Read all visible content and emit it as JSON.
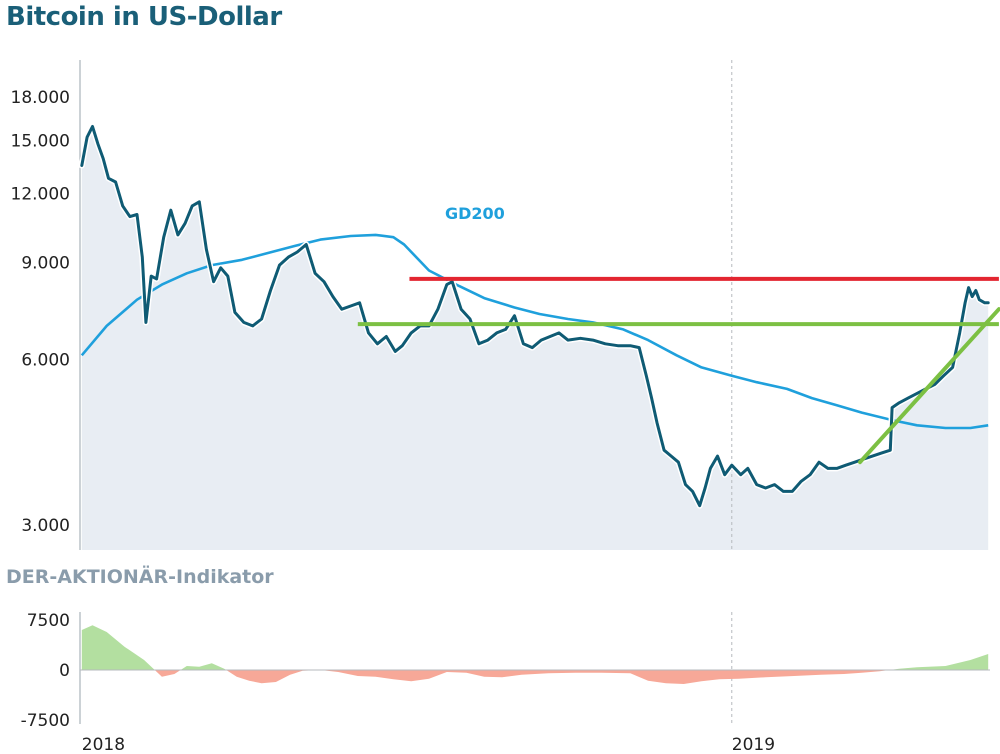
{
  "title": "Bitcoin in US-Dollar",
  "indicator_title": "DER-AKTIONÄR-Indikator",
  "gd_label": "GD200",
  "chart_data": [
    {
      "type": "line",
      "title": "Bitcoin in US-Dollar",
      "yscale": "log",
      "ylim": [
        2700,
        21000
      ],
      "xlim": [
        "2017-12-31",
        "2019-05-26"
      ],
      "yticks": [
        3000,
        6000,
        9000,
        12000,
        15000,
        18000
      ],
      "ytick_labels": [
        "3.000",
        "6.000",
        "9.000",
        "12.000",
        "15.000",
        "18.000"
      ],
      "xtick_labels": [
        "2018",
        "2019"
      ],
      "xtick_dates": [
        "2018-01-01",
        "2019-01-01"
      ],
      "grid": "vertical dashed at year start",
      "colors": {
        "price": "#0f5b74",
        "gd200": "#1fa0dc",
        "fill": "#e8edf3",
        "resistance": "#e32530",
        "support": "#7cc043"
      },
      "series": [
        {
          "name": "",
          "x": [
            "2018-01-01",
            "2018-01-04",
            "2018-01-07",
            "2018-01-10",
            "2018-01-13",
            "2018-01-16",
            "2018-01-20",
            "2018-01-24",
            "2018-01-28",
            "2018-02-01",
            "2018-02-04",
            "2018-02-06",
            "2018-02-09",
            "2018-02-12",
            "2018-02-16",
            "2018-02-20",
            "2018-02-24",
            "2018-02-28",
            "2018-03-04",
            "2018-03-08",
            "2018-03-12",
            "2018-03-16",
            "2018-03-20",
            "2018-03-24",
            "2018-03-28",
            "2018-04-02",
            "2018-04-07",
            "2018-04-12",
            "2018-04-17",
            "2018-04-22",
            "2018-04-27",
            "2018-05-02",
            "2018-05-07",
            "2018-05-12",
            "2018-05-17",
            "2018-05-22",
            "2018-05-27",
            "2018-06-01",
            "2018-06-06",
            "2018-06-11",
            "2018-06-16",
            "2018-06-21",
            "2018-06-26",
            "2018-06-30",
            "2018-07-05",
            "2018-07-10",
            "2018-07-15",
            "2018-07-20",
            "2018-07-25",
            "2018-07-28",
            "2018-08-02",
            "2018-08-07",
            "2018-08-12",
            "2018-08-17",
            "2018-08-22",
            "2018-08-27",
            "2018-09-01",
            "2018-09-06",
            "2018-09-11",
            "2018-09-16",
            "2018-09-21",
            "2018-09-26",
            "2018-10-01",
            "2018-10-08",
            "2018-10-15",
            "2018-10-22",
            "2018-10-29",
            "2018-11-05",
            "2018-11-10",
            "2018-11-14",
            "2018-11-17",
            "2018-11-20",
            "2018-11-24",
            "2018-11-28",
            "2018-12-02",
            "2018-12-06",
            "2018-12-10",
            "2018-12-14",
            "2018-12-17",
            "2018-12-20",
            "2018-12-24",
            "2018-12-28",
            "2019-01-01",
            "2019-01-06",
            "2019-01-10",
            "2019-01-15",
            "2019-01-20",
            "2019-01-25",
            "2019-01-30",
            "2019-02-04",
            "2019-02-09",
            "2019-02-14",
            "2019-02-19",
            "2019-02-24",
            "2019-03-01",
            "2019-03-06",
            "2019-03-11",
            "2019-03-16",
            "2019-03-21",
            "2019-03-26",
            "2019-03-31",
            "2019-04-01",
            "2019-04-05",
            "2019-04-10",
            "2019-04-15",
            "2019-04-20",
            "2019-04-25",
            "2019-04-30",
            "2019-05-05",
            "2019-05-09",
            "2019-05-12",
            "2019-05-14",
            "2019-05-16",
            "2019-05-18",
            "2019-05-20",
            "2019-05-23",
            "2019-05-25"
          ],
          "values": [
            13500,
            15200,
            15900,
            14800,
            13900,
            12800,
            12600,
            11400,
            10900,
            11000,
            9200,
            7000,
            8500,
            8400,
            10000,
            11200,
            10100,
            10600,
            11400,
            11600,
            9500,
            8300,
            8800,
            8500,
            7300,
            7000,
            6900,
            7100,
            8000,
            8900,
            9200,
            9400,
            9700,
            8600,
            8300,
            7800,
            7400,
            7500,
            7600,
            6700,
            6400,
            6600,
            6200,
            6350,
            6700,
            6900,
            6900,
            7400,
            8200,
            8300,
            7400,
            7100,
            6400,
            6500,
            6700,
            6800,
            7200,
            6400,
            6300,
            6500,
            6600,
            6700,
            6500,
            6550,
            6500,
            6400,
            6350,
            6350,
            6300,
            5600,
            5100,
            4600,
            4100,
            4000,
            3900,
            3550,
            3450,
            3250,
            3500,
            3800,
            4000,
            3700,
            3850,
            3700,
            3800,
            3550,
            3500,
            3550,
            3450,
            3450,
            3600,
            3700,
            3900,
            3800,
            3800,
            3850,
            3900,
            3950,
            4000,
            4050,
            4100,
            4900,
            5000,
            5100,
            5200,
            5300,
            5400,
            5600,
            5800,
            6700,
            7600,
            8100,
            7800,
            8000,
            7700,
            7600,
            7600
          ]
        },
        {
          "name": "GD200",
          "x": [
            "2018-01-01",
            "2018-01-15",
            "2018-02-01",
            "2018-02-15",
            "2018-03-01",
            "2018-03-15",
            "2018-04-01",
            "2018-04-15",
            "2018-05-01",
            "2018-05-15",
            "2018-06-01",
            "2018-06-15",
            "2018-06-25",
            "2018-07-01",
            "2018-07-15",
            "2018-08-01",
            "2018-08-15",
            "2018-09-01",
            "2018-09-15",
            "2018-10-01",
            "2018-10-15",
            "2018-11-01",
            "2018-11-15",
            "2018-12-01",
            "2018-12-15",
            "2019-01-01",
            "2019-01-15",
            "2019-02-01",
            "2019-02-15",
            "2019-03-01",
            "2019-03-15",
            "2019-04-01",
            "2019-04-15",
            "2019-05-01",
            "2019-05-15",
            "2019-05-25"
          ],
          "values": [
            6100,
            6900,
            7700,
            8200,
            8600,
            8900,
            9100,
            9350,
            9650,
            9900,
            10050,
            10100,
            10000,
            9700,
            8700,
            8150,
            7750,
            7450,
            7250,
            7100,
            7000,
            6800,
            6500,
            6100,
            5800,
            5600,
            5450,
            5300,
            5100,
            4950,
            4800,
            4650,
            4550,
            4500,
            4500,
            4550
          ]
        }
      ],
      "annotations": [
        {
          "type": "hline",
          "label": "",
          "value": 8400,
          "x_start": "2018-07-04",
          "x_end": "2019-05-31",
          "color": "#e32530"
        },
        {
          "type": "hline",
          "label": "",
          "value": 6950,
          "x_start": "2018-06-05",
          "x_end": "2019-05-31",
          "color": "#7cc043"
        },
        {
          "type": "trendline",
          "label": "",
          "from": {
            "x": "2019-03-14",
            "y": 3900
          },
          "to": {
            "x": "2019-05-31",
            "y": 7400
          },
          "color": "#7cc043"
        }
      ]
    },
    {
      "type": "area",
      "title": "DER-AKTIONÄR-Indikator",
      "ylim": [
        -7500,
        7500
      ],
      "yticks": [
        7500,
        0,
        -7500
      ],
      "ytick_labels": [
        "7500",
        "0",
        "-7500"
      ],
      "xtick_labels": [
        "2018",
        "2019"
      ],
      "colors": {
        "positive": "#b3dfa0",
        "negative": "#f7a898"
      },
      "series": [
        {
          "name": "",
          "x": [
            "2018-01-01",
            "2018-01-07",
            "2018-01-15",
            "2018-01-25",
            "2018-02-05",
            "2018-02-15",
            "2018-02-22",
            "2018-03-01",
            "2018-03-08",
            "2018-03-15",
            "2018-03-22",
            "2018-03-29",
            "2018-04-05",
            "2018-04-12",
            "2018-04-20",
            "2018-04-28",
            "2018-05-05",
            "2018-05-15",
            "2018-05-25",
            "2018-06-05",
            "2018-06-15",
            "2018-06-25",
            "2018-07-05",
            "2018-07-15",
            "2018-07-25",
            "2018-08-05",
            "2018-08-15",
            "2018-08-25",
            "2018-09-05",
            "2018-09-20",
            "2018-10-05",
            "2018-10-20",
            "2018-11-05",
            "2018-11-15",
            "2018-11-25",
            "2018-12-05",
            "2018-12-15",
            "2018-12-25",
            "2019-01-05",
            "2019-01-20",
            "2019-02-05",
            "2019-02-20",
            "2019-03-05",
            "2019-03-15",
            "2019-03-25",
            "2019-04-05",
            "2019-04-15",
            "2019-05-01",
            "2019-05-15",
            "2019-05-25"
          ],
          "values": [
            6000,
            6700,
            5700,
            3500,
            1500,
            -1000,
            -600,
            600,
            500,
            1000,
            200,
            -1000,
            -1600,
            -2000,
            -1800,
            -700,
            -100,
            0,
            -300,
            -900,
            -1000,
            -1400,
            -1700,
            -1300,
            -300,
            -400,
            -1000,
            -1100,
            -700,
            -500,
            -400,
            -400,
            -500,
            -1600,
            -2000,
            -2100,
            -1700,
            -1400,
            -1300,
            -1100,
            -900,
            -700,
            -600,
            -400,
            -200,
            200,
            400,
            600,
            1500,
            2400
          ]
        }
      ]
    }
  ]
}
